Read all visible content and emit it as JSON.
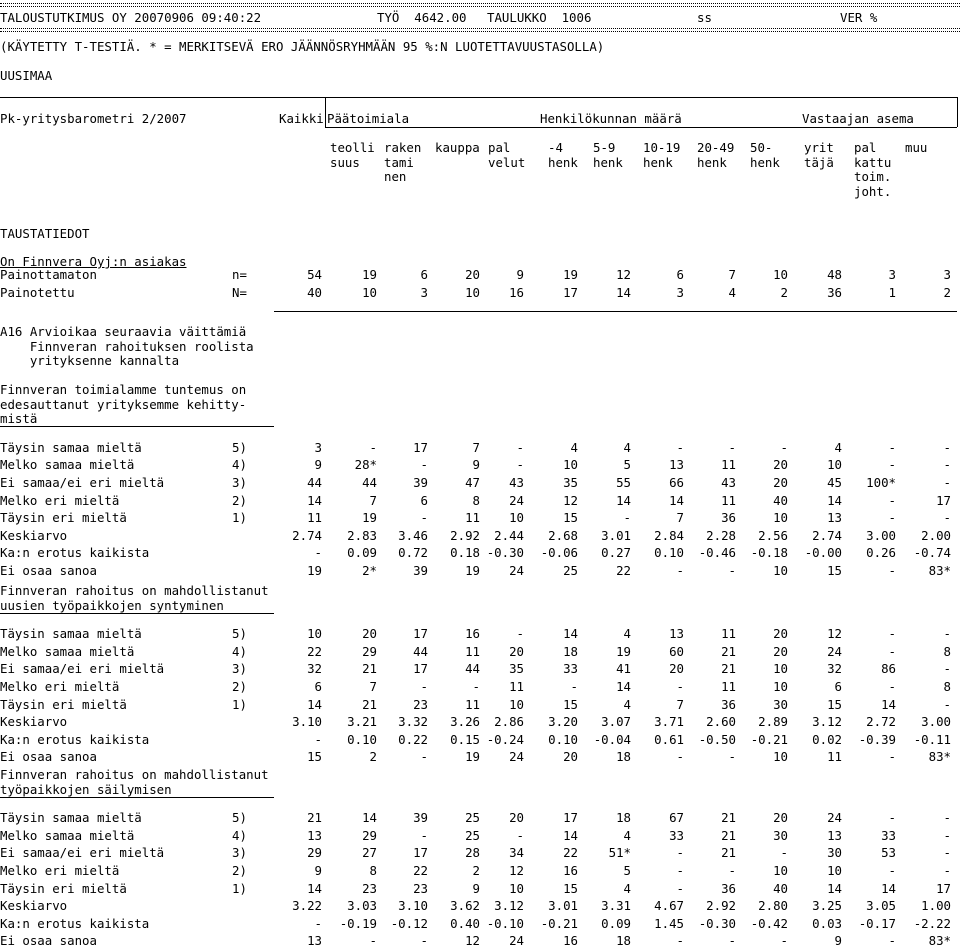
{
  "report_header": {
    "org": "TALOUSTUTKIMUS OY 20070906 09:40:22",
    "job": "TYÖ  4642.00",
    "table": "TAULUKKO  1006",
    "ss": "ss",
    "ver": "VER %",
    "note": "(KÄYTETTY T-TESTIÄ. * = MERKITSEVÄ ERO JÄÄNNÖSRYHMÄÄN 95 %:N LUOTETTAVUUSTASOLLA)",
    "region": "UUSIMAA"
  },
  "column_header": {
    "survey": "Pk-yritysbarometri 2/2007",
    "groups": [
      "Kaikki",
      "Päätoimiala",
      "Henkilökunnan määrä",
      "Vastaajan asema"
    ],
    "line1": [
      "teolli",
      "raken",
      "kauppa",
      "pal",
      "-4",
      "5-9",
      "10-19",
      "20-49",
      "50-",
      "yrit",
      "pal",
      "muu"
    ],
    "line2": [
      "suus",
      "tami",
      "",
      "velut",
      "henk",
      "henk",
      "henk",
      "henk",
      "henk",
      "täjä",
      "kattu",
      ""
    ],
    "line3": [
      "",
      "nen",
      "",
      "",
      "",
      "",
      "",
      "",
      "",
      "",
      "toim.",
      ""
    ],
    "line4": [
      "",
      "",
      "",
      "",
      "",
      "",
      "",
      "",
      "",
      "",
      "joht.",
      ""
    ]
  },
  "background": {
    "title": "TAUSTATIEDOT",
    "subtitle": "On Finnvera Oyj:n asiakas",
    "rows": [
      {
        "label": "Painottamaton",
        "code": "n=",
        "values": [
          "54",
          "19",
          "6",
          "20",
          "9",
          "19",
          "12",
          "6",
          "7",
          "10",
          "48",
          "3",
          "3"
        ]
      },
      {
        "label": "Painotettu",
        "code": "N=",
        "values": [
          "40",
          "10",
          "3",
          "10",
          "16",
          "17",
          "14",
          "3",
          "4",
          "2",
          "36",
          "1",
          "2"
        ]
      }
    ]
  },
  "question": {
    "lines": [
      "A16 Arvioikaa seuraavia väittämiä",
      "    Finnveran rahoituksen roolista",
      "    yrityksenne kannalta"
    ]
  },
  "sections": [
    {
      "title_lines": [
        "Finnveran toimialamme tuntemus on",
        "edesauttanut yrityksemme kehitty-",
        "mistä"
      ],
      "rows": [
        {
          "label": "Täysin samaa mieltä",
          "code": "5)",
          "values": [
            "3",
            "-",
            "17",
            "7",
            "-",
            "4",
            "4",
            "-",
            "-",
            "-",
            "4",
            "-",
            "-"
          ]
        },
        {
          "label": "Melko samaa mieltä",
          "code": "4)",
          "values": [
            "9",
            "28*",
            "-",
            "9",
            "-",
            "10",
            "5",
            "13",
            "11",
            "20",
            "10",
            "-",
            "-"
          ]
        },
        {
          "label": "Ei samaa/ei eri mieltä",
          "code": "3)",
          "values": [
            "44",
            "44",
            "39",
            "47",
            "43",
            "35",
            "55",
            "66",
            "43",
            "20",
            "45",
            "100*",
            "-"
          ]
        },
        {
          "label": "Melko eri mieltä",
          "code": "2)",
          "values": [
            "14",
            "7",
            "6",
            "8",
            "24",
            "12",
            "14",
            "14",
            "11",
            "40",
            "14",
            "-",
            "17"
          ]
        },
        {
          "label": "Täysin eri mieltä",
          "code": "1)",
          "values": [
            "11",
            "19",
            "-",
            "11",
            "10",
            "15",
            "-",
            "7",
            "36",
            "10",
            "13",
            "-",
            "-"
          ]
        },
        {
          "label": "Keskiarvo",
          "code": "",
          "values": [
            "2.74",
            "2.83",
            "3.46",
            "2.92",
            "2.44",
            "2.68",
            "3.01",
            "2.84",
            "2.28",
            "2.56",
            "2.74",
            "3.00",
            "2.00"
          ]
        },
        {
          "label": "Ka:n erotus kaikista",
          "code": "",
          "values": [
            "-",
            "0.09",
            "0.72",
            "0.18",
            "-0.30",
            "-0.06",
            "0.27",
            "0.10",
            "-0.46",
            "-0.18",
            "-0.00",
            "0.26",
            "-0.74"
          ]
        },
        {
          "label": "Ei osaa sanoa",
          "code": "",
          "values": [
            "19",
            "2*",
            "39",
            "19",
            "24",
            "25",
            "22",
            "-",
            "-",
            "10",
            "15",
            "-",
            "83*"
          ]
        }
      ]
    },
    {
      "title_lines": [
        "Finnveran rahoitus on mahdollistanut",
        "uusien työpaikkojen syntyminen"
      ],
      "rows": [
        {
          "label": "Täysin samaa mieltä",
          "code": "5)",
          "values": [
            "10",
            "20",
            "17",
            "16",
            "-",
            "14",
            "4",
            "13",
            "11",
            "20",
            "12",
            "-",
            "-"
          ]
        },
        {
          "label": "Melko samaa mieltä",
          "code": "4)",
          "values": [
            "22",
            "29",
            "44",
            "11",
            "20",
            "18",
            "19",
            "60",
            "21",
            "20",
            "24",
            "-",
            "8"
          ]
        },
        {
          "label": "Ei samaa/ei eri mieltä",
          "code": "3)",
          "values": [
            "32",
            "21",
            "17",
            "44",
            "35",
            "33",
            "41",
            "20",
            "21",
            "10",
            "32",
            "86",
            "-"
          ]
        },
        {
          "label": "Melko eri mieltä",
          "code": "2)",
          "values": [
            "6",
            "7",
            "-",
            "-",
            "11",
            "-",
            "14",
            "-",
            "11",
            "10",
            "6",
            "-",
            "8"
          ]
        },
        {
          "label": "Täysin eri mieltä",
          "code": "1)",
          "values": [
            "14",
            "21",
            "23",
            "11",
            "10",
            "15",
            "4",
            "7",
            "36",
            "30",
            "15",
            "14",
            "-"
          ]
        },
        {
          "label": "Keskiarvo",
          "code": "",
          "values": [
            "3.10",
            "3.21",
            "3.32",
            "3.26",
            "2.86",
            "3.20",
            "3.07",
            "3.71",
            "2.60",
            "2.89",
            "3.12",
            "2.72",
            "3.00"
          ]
        },
        {
          "label": "Ka:n erotus kaikista",
          "code": "",
          "values": [
            "-",
            "0.10",
            "0.22",
            "0.15",
            "-0.24",
            "0.10",
            "-0.04",
            "0.61",
            "-0.50",
            "-0.21",
            "0.02",
            "-0.39",
            "-0.11"
          ]
        },
        {
          "label": "Ei osaa sanoa",
          "code": "",
          "values": [
            "15",
            "2",
            "-",
            "19",
            "24",
            "20",
            "18",
            "-",
            "-",
            "10",
            "11",
            "-",
            "83*"
          ]
        }
      ]
    },
    {
      "title_lines": [
        "Finnveran rahoitus on mahdollistanut",
        "työpaikkojen säilymisen"
      ],
      "rows": [
        {
          "label": "Täysin samaa mieltä",
          "code": "5)",
          "values": [
            "21",
            "14",
            "39",
            "25",
            "20",
            "17",
            "18",
            "67",
            "21",
            "20",
            "24",
            "-",
            "-"
          ]
        },
        {
          "label": "Melko samaa mieltä",
          "code": "4)",
          "values": [
            "13",
            "29",
            "-",
            "25",
            "-",
            "14",
            "4",
            "33",
            "21",
            "30",
            "13",
            "33",
            "-"
          ]
        },
        {
          "label": "Ei samaa/ei eri mieltä",
          "code": "3)",
          "values": [
            "29",
            "27",
            "17",
            "28",
            "34",
            "22",
            "51*",
            "-",
            "21",
            "-",
            "30",
            "53",
            "-"
          ]
        },
        {
          "label": "Melko eri mieltä",
          "code": "2)",
          "values": [
            "9",
            "8",
            "22",
            "2",
            "12",
            "16",
            "5",
            "-",
            "-",
            "10",
            "10",
            "-",
            "-"
          ]
        },
        {
          "label": "Täysin eri mieltä",
          "code": "1)",
          "values": [
            "14",
            "23",
            "23",
            "9",
            "10",
            "15",
            "4",
            "-",
            "36",
            "40",
            "14",
            "14",
            "17"
          ]
        },
        {
          "label": "Keskiarvo",
          "code": "",
          "values": [
            "3.22",
            "3.03",
            "3.10",
            "3.62",
            "3.12",
            "3.01",
            "3.31",
            "4.67",
            "2.92",
            "2.80",
            "3.25",
            "3.05",
            "1.00"
          ]
        },
        {
          "label": "Ka:n erotus kaikista",
          "code": "",
          "values": [
            "-",
            "-0.19",
            "-0.12",
            "0.40",
            "-0.10",
            "-0.21",
            "0.09",
            "1.45",
            "-0.30",
            "-0.42",
            "0.03",
            "-0.17",
            "-2.22"
          ]
        },
        {
          "label": "Ei osaa sanoa",
          "code": "",
          "values": [
            "13",
            "-",
            "-",
            "12",
            "24",
            "16",
            "18",
            "-",
            "-",
            "-",
            "9",
            "-",
            "83*"
          ]
        }
      ]
    }
  ]
}
